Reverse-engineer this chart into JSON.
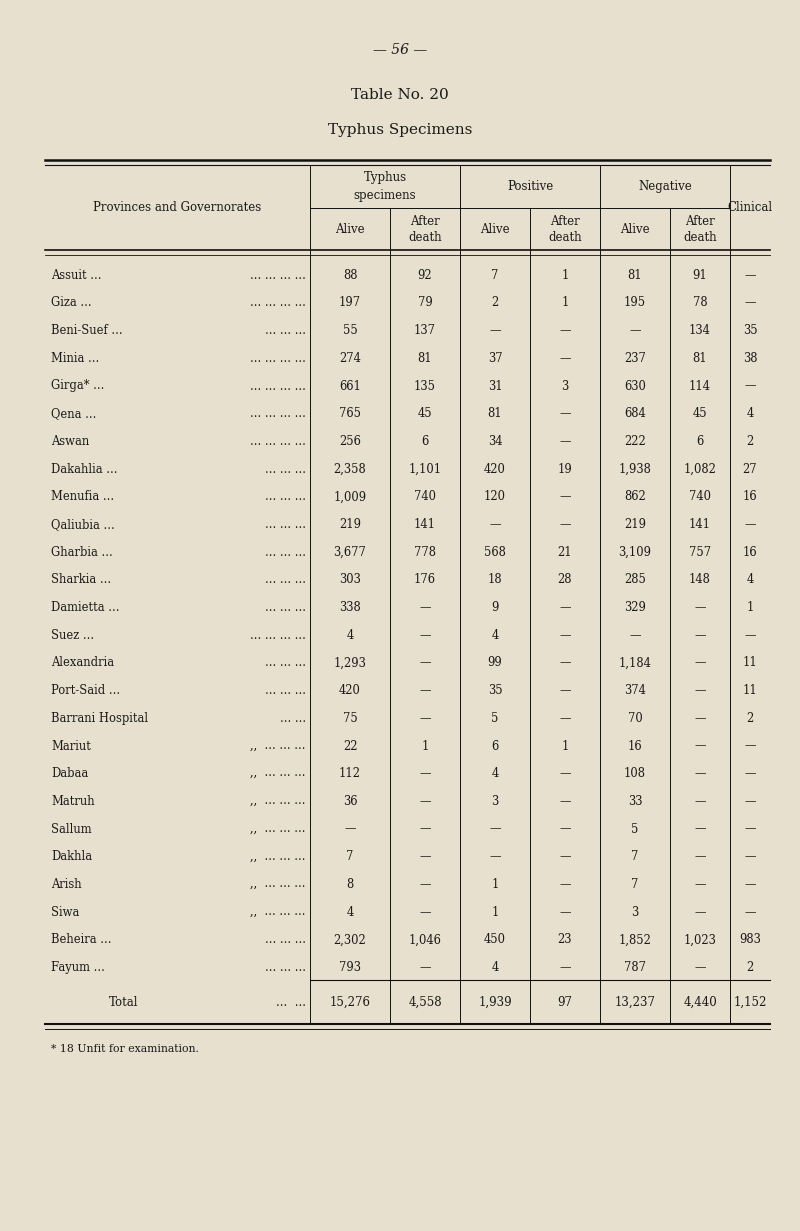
{
  "page_header": "— 56 —",
  "title": "Table No. 20",
  "subtitle": "Typhus Specimens",
  "bg_color": "#e8e0ce",
  "text_color": "#1a1a1a",
  "row_header": "Provinces and Governorates",
  "rows": [
    [
      "Assuit ...",
      "... ... ... ...",
      "88",
      "92",
      "7",
      "1",
      "81",
      "91",
      "—"
    ],
    [
      "Giza ...",
      "... ... ... ...",
      "197",
      "79",
      "2",
      "1",
      "195",
      "78",
      "—"
    ],
    [
      "Beni-Suef ...",
      "... ... ...",
      "55",
      "137",
      "—",
      "—",
      "—",
      "134",
      "35"
    ],
    [
      "Minia ...",
      "... ... ... ...",
      "274",
      "81",
      "37",
      "—",
      "237",
      "81",
      "38"
    ],
    [
      "Girga* ...",
      "... ... ... ...",
      "661",
      "135",
      "31",
      "3",
      "630",
      "114",
      "—"
    ],
    [
      "Qena ...",
      "... ... ... ...",
      "765",
      "45",
      "81",
      "—",
      "684",
      "45",
      "4"
    ],
    [
      "Aswan",
      "... ... ... ...",
      "256",
      "6",
      "34",
      "—",
      "222",
      "6",
      "2"
    ],
    [
      "Dakahlia ...",
      "... ... ...",
      "2,358",
      "1,101",
      "420",
      "19",
      "1,938",
      "1,082",
      "27"
    ],
    [
      "Menufia ...",
      "... ... ...",
      "1,009",
      "740",
      "120",
      "—",
      "862",
      "740",
      "16"
    ],
    [
      "Qaliubia ...",
      "... ... ...",
      "219",
      "141",
      "—",
      "—",
      "219",
      "141",
      "—"
    ],
    [
      "Gharbia ...",
      "... ... ...",
      "3,677",
      "778",
      "568",
      "21",
      "3,109",
      "757",
      "16"
    ],
    [
      "Sharkia ...",
      "... ... ...",
      "303",
      "176",
      "18",
      "28",
      "285",
      "148",
      "4"
    ],
    [
      "Damietta ...",
      "... ... ...",
      "338",
      "—",
      "9",
      "—",
      "329",
      "—",
      "1"
    ],
    [
      "Suez ...",
      "... ... ... ...",
      "4",
      "—",
      "4",
      "—",
      "—",
      "—",
      "—"
    ],
    [
      "Alexandria",
      "... ... ...",
      "1,293",
      "—",
      "99",
      "—",
      "1,184",
      "—",
      "11"
    ],
    [
      "Port-Said ...",
      "... ... ...",
      "420",
      "—",
      "35",
      "—",
      "374",
      "—",
      "11"
    ],
    [
      "Barrani Hospital",
      "... ...",
      "75",
      "—",
      "5",
      "—",
      "70",
      "—",
      "2"
    ],
    [
      "Mariut",
      ",,  ... ... ...",
      "22",
      "1",
      "6",
      "1",
      "16",
      "—",
      "—"
    ],
    [
      "Dabaa",
      ",,  ... ... ...",
      "112",
      "—",
      "4",
      "—",
      "108",
      "—",
      "—"
    ],
    [
      "Matruh",
      ",,  ... ... ...",
      "36",
      "—",
      "3",
      "—",
      "33",
      "—",
      "—"
    ],
    [
      "Sallum",
      ",,  ... ... ...",
      "—",
      "—",
      "—",
      "—",
      "5",
      "—",
      "—"
    ],
    [
      "Dakhla",
      ",,  ... ... ...",
      "7",
      "—",
      "—",
      "—",
      "7",
      "—",
      "—"
    ],
    [
      "Arish",
      ",,  ... ... ...",
      "8",
      "—",
      "1",
      "—",
      "7",
      "—",
      "—"
    ],
    [
      "Siwa",
      ",,  ... ... ...",
      "4",
      "—",
      "1",
      "—",
      "3",
      "—",
      "—"
    ],
    [
      "Beheira ...",
      "... ... ...",
      "2,302",
      "1,046",
      "450",
      "23",
      "1,852",
      "1,023",
      "983"
    ],
    [
      "Fayum ...",
      "... ... ...",
      "793",
      "—",
      "4",
      "—",
      "787",
      "—",
      "2"
    ]
  ],
  "total_row": [
    "Total",
    "...  ...",
    "15,276",
    "4,558",
    "1,939",
    "97",
    "13,237",
    "4,440",
    "1,152"
  ],
  "footnote": "* 18 Unfit for examination."
}
